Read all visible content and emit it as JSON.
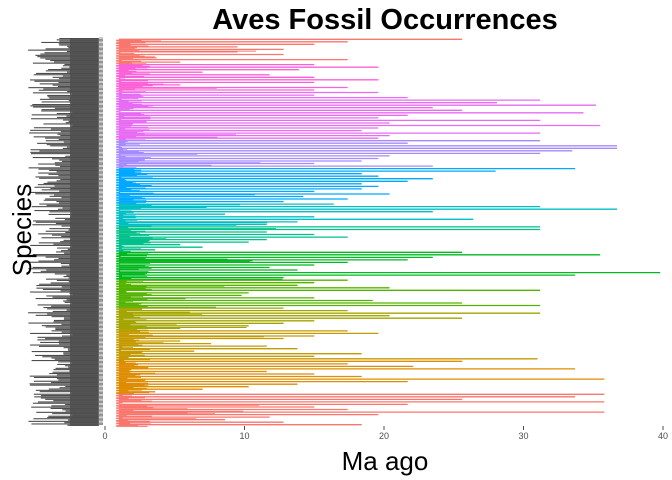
{
  "chart_data": {
    "type": "bar",
    "orientation": "horizontal-range",
    "title": "Aves Fossil Occurrences",
    "xlabel": "Ma ago",
    "ylabel": "Species",
    "xlim": [
      0,
      40
    ],
    "x_ticks": [
      0,
      10,
      20,
      30,
      40
    ],
    "grid": false,
    "legend": "none",
    "y_tick_labels_legible": false,
    "n_species_approx": 300,
    "palette_order_top_to_bottom": [
      "#f8766d",
      "#fb61d7",
      "#e76bf3",
      "#a58aff",
      "#00a9ff",
      "#00bfc4",
      "#00c08b",
      "#00b81f",
      "#53b400",
      "#a3a500",
      "#c49a00",
      "#de8c00",
      "#f8766d"
    ],
    "series": [
      {
        "color": "#f8766d",
        "ranges": [
          [
            1,
            25.6
          ],
          [
            1,
            17.4
          ],
          [
            1,
            15
          ],
          [
            1,
            9.5
          ],
          [
            1,
            12.8
          ],
          [
            1,
            9.5
          ],
          [
            1,
            12.8
          ],
          [
            1,
            3.6
          ],
          [
            1,
            17.4
          ],
          [
            1,
            5.4
          ]
        ]
      },
      {
        "color": "#fb61d7",
        "ranges": [
          [
            1,
            15
          ],
          [
            1,
            19.6
          ],
          [
            1,
            13.9
          ],
          [
            1,
            7
          ],
          [
            1,
            11.8
          ],
          [
            1,
            15
          ],
          [
            1,
            19.6
          ],
          [
            1,
            15
          ],
          [
            1,
            5.4
          ],
          [
            1,
            17.4
          ],
          [
            1,
            15
          ]
        ]
      },
      {
        "color": "#e76bf3",
        "ranges": [
          [
            1,
            19.6
          ],
          [
            1,
            15
          ],
          [
            1,
            21.7
          ],
          [
            1,
            31.2
          ],
          [
            1,
            28.1
          ],
          [
            1,
            35.2
          ],
          [
            1,
            23.5
          ],
          [
            1,
            25.6
          ],
          [
            1,
            34.3
          ],
          [
            1,
            21.7
          ],
          [
            1,
            19.6
          ],
          [
            1,
            31.2
          ],
          [
            1,
            20.4
          ],
          [
            1,
            35.5
          ],
          [
            1,
            19.6
          ],
          [
            1,
            18.4
          ],
          [
            1,
            31.2
          ],
          [
            1,
            20.4
          ],
          [
            1,
            19.6
          ]
        ]
      },
      {
        "color": "#a58aff",
        "ranges": [
          [
            1,
            31.2
          ],
          [
            1,
            21.7
          ],
          [
            1,
            36.7
          ],
          [
            1,
            36.7
          ],
          [
            1,
            33.5
          ],
          [
            1,
            31.2
          ],
          [
            1,
            20.4
          ],
          [
            1,
            19.6
          ],
          [
            1,
            18.4
          ],
          [
            1,
            15
          ],
          [
            1,
            23.5
          ]
        ]
      },
      {
        "color": "#00a9ff",
        "ranges": [
          [
            1,
            33.7
          ],
          [
            1,
            28
          ],
          [
            1,
            18.4
          ],
          [
            1,
            19.6
          ],
          [
            1,
            23.5
          ],
          [
            1,
            21.7
          ],
          [
            1,
            18.4
          ],
          [
            1,
            19.6
          ],
          [
            1,
            18.4
          ],
          [
            1,
            15
          ],
          [
            1,
            20.4
          ],
          [
            1,
            14.2
          ],
          [
            1,
            17.4
          ],
          [
            1,
            12.8
          ]
        ]
      },
      {
        "color": "#00bfc4",
        "ranges": [
          [
            1,
            16.4
          ],
          [
            1,
            31.2
          ],
          [
            1,
            36.7
          ],
          [
            1,
            23.5
          ],
          [
            1,
            8.6
          ],
          [
            1,
            15
          ],
          [
            1,
            26.4
          ],
          [
            1,
            13.8
          ],
          [
            1,
            11.6
          ]
        ]
      },
      {
        "color": "#00c08b",
        "ranges": [
          [
            1,
            31.2
          ],
          [
            1,
            31.2
          ],
          [
            1,
            11.6
          ],
          [
            1,
            15
          ],
          [
            1,
            17.4
          ],
          [
            1,
            11.6
          ],
          [
            1,
            10.3
          ],
          [
            1,
            5.4
          ],
          [
            1,
            7
          ],
          [
            1,
            3.6
          ]
        ]
      },
      {
        "color": "#00b81f",
        "ranges": [
          [
            1,
            25.6
          ],
          [
            1,
            35.5
          ],
          [
            1,
            23.5
          ],
          [
            1,
            21.7
          ],
          [
            1,
            17.4
          ],
          [
            1,
            15
          ],
          [
            1,
            11.8
          ],
          [
            1,
            13.8
          ],
          [
            1,
            39.8
          ],
          [
            1,
            33.7
          ],
          [
            1,
            12.8
          ]
        ]
      },
      {
        "color": "#53b400",
        "ranges": [
          [
            1,
            17.4
          ],
          [
            1,
            15
          ],
          [
            1,
            13.8
          ],
          [
            1,
            20.4
          ],
          [
            1,
            31.2
          ],
          [
            1,
            10.3
          ],
          [
            1,
            9.8
          ],
          [
            1,
            15
          ],
          [
            1,
            19.2
          ],
          [
            1,
            25.6
          ],
          [
            1,
            31.2
          ]
        ]
      },
      {
        "color": "#a3a500",
        "ranges": [
          [
            1,
            12.8
          ],
          [
            1,
            17.4
          ],
          [
            1,
            31.2
          ],
          [
            1,
            20.4
          ],
          [
            1,
            25.6
          ],
          [
            1,
            15
          ],
          [
            1,
            12.8
          ],
          [
            1,
            10.3
          ],
          [
            1,
            5.4
          ]
        ]
      },
      {
        "color": "#c49a00",
        "ranges": [
          [
            1,
            17.4
          ],
          [
            1,
            19.6
          ],
          [
            1,
            15
          ],
          [
            1,
            12.8
          ],
          [
            1,
            5.4
          ],
          [
            1,
            7.6
          ],
          [
            1,
            11.6
          ],
          [
            1,
            13.8
          ],
          [
            1,
            6.4
          ],
          [
            1,
            18.4
          ],
          [
            1,
            15
          ],
          [
            1,
            31
          ]
        ]
      },
      {
        "color": "#de8c00",
        "ranges": [
          [
            1,
            25.6
          ],
          [
            1,
            17.4
          ],
          [
            1,
            22.1
          ],
          [
            1,
            33.7
          ],
          [
            1,
            11.6
          ],
          [
            1,
            15
          ],
          [
            1,
            18.4
          ],
          [
            1,
            35.8
          ],
          [
            1,
            21.7
          ],
          [
            1,
            13.8
          ],
          [
            1,
            10.3
          ],
          [
            1,
            7
          ],
          [
            1,
            3.6
          ]
        ]
      },
      {
        "color": "#f8766d",
        "ranges": [
          [
            1,
            35.8
          ],
          [
            1,
            33.7
          ],
          [
            1,
            25.6
          ],
          [
            1,
            35.8
          ],
          [
            1,
            21.7
          ],
          [
            1,
            15
          ],
          [
            1,
            17.4
          ],
          [
            1,
            35.8
          ],
          [
            1,
            19.6
          ],
          [
            1,
            11.8
          ],
          [
            1,
            8.6
          ],
          [
            1,
            12.8
          ],
          [
            1,
            18.4
          ]
        ]
      }
    ]
  }
}
